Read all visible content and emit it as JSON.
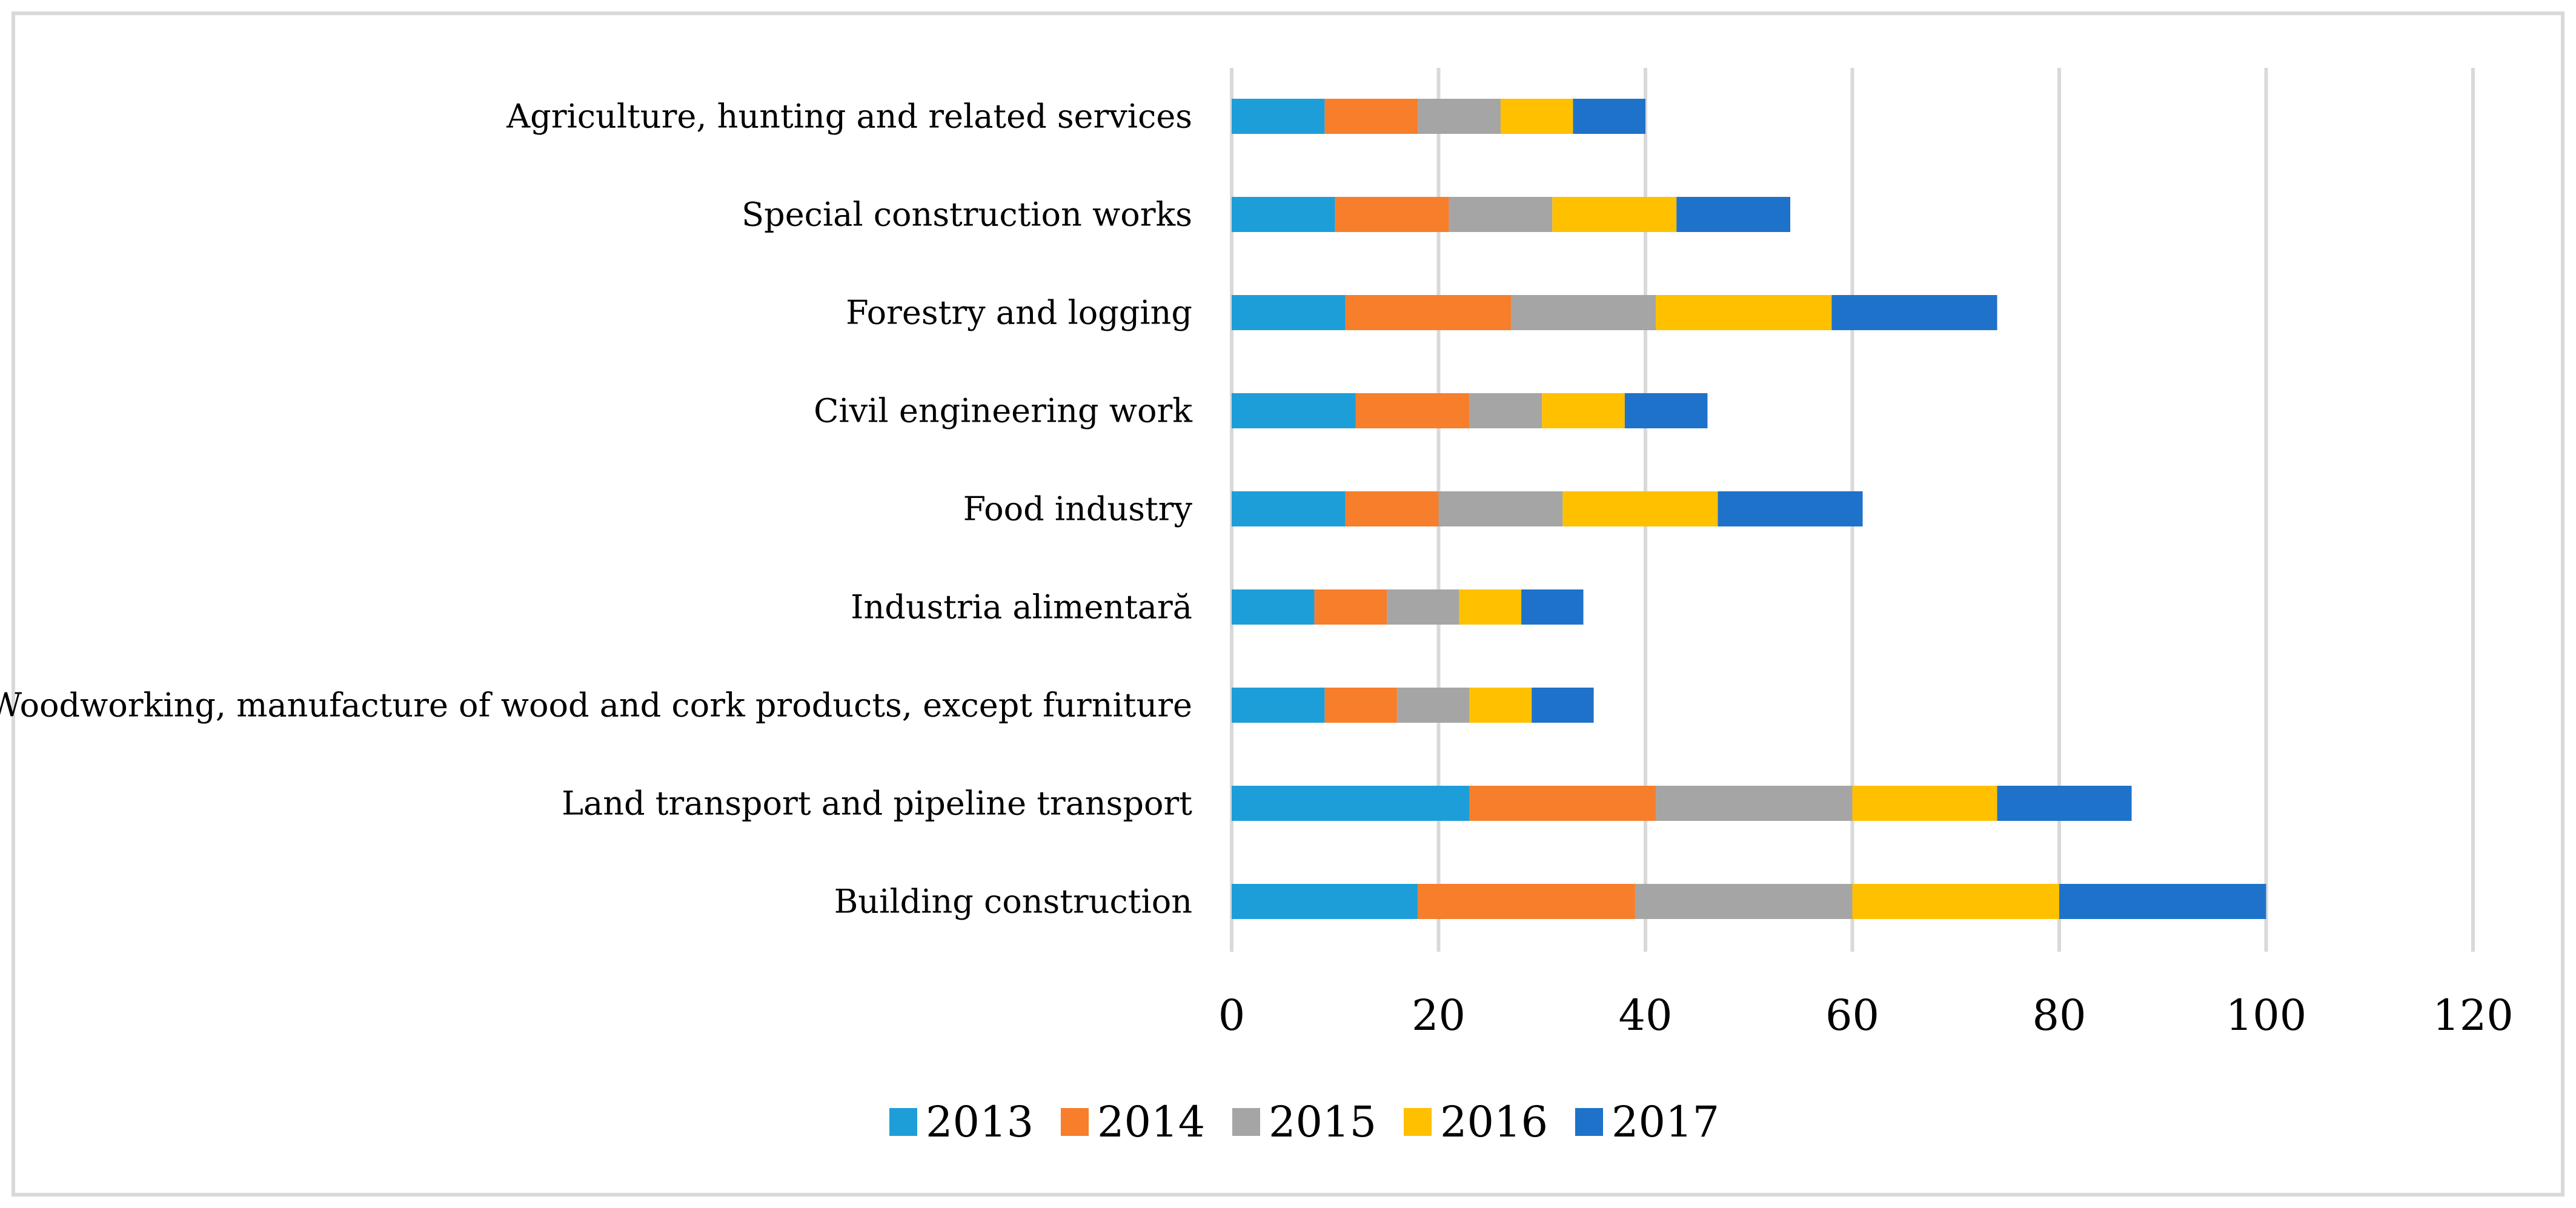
{
  "chart_data": {
    "type": "bar",
    "orientation": "horizontal",
    "stacked": true,
    "title": "",
    "xlabel": "",
    "ylabel": "",
    "xlim": [
      0,
      120
    ],
    "x_ticks": [
      0,
      20,
      40,
      60,
      80,
      100,
      120
    ],
    "grid": "vertical",
    "legend_position": "bottom",
    "categories": [
      "Agriculture, hunting and related services",
      "Special construction works",
      "Forestry and logging",
      "Civil engineering work",
      "Food industry",
      "Industria alimentară",
      "Woodworking, manufacture of wood and cork products, except furniture",
      "Land transport and pipeline transport",
      "Building construction"
    ],
    "series": [
      {
        "name": "2013",
        "color": "#1E9ED8",
        "values": [
          9,
          10,
          11,
          12,
          11,
          8,
          9,
          23,
          18
        ]
      },
      {
        "name": "2014",
        "color": "#F77E2B",
        "values": [
          9,
          11,
          16,
          11,
          9,
          7,
          7,
          18,
          21
        ]
      },
      {
        "name": "2015",
        "color": "#A5A5A5",
        "values": [
          8,
          10,
          14,
          7,
          12,
          7,
          7,
          19,
          21
        ]
      },
      {
        "name": "2016",
        "color": "#FFC000",
        "values": [
          7,
          12,
          17,
          8,
          15,
          6,
          6,
          14,
          20
        ]
      },
      {
        "name": "2017",
        "color": "#1F72C9",
        "values": [
          7,
          11,
          16,
          8,
          14,
          6,
          6,
          13,
          20
        ]
      }
    ]
  }
}
